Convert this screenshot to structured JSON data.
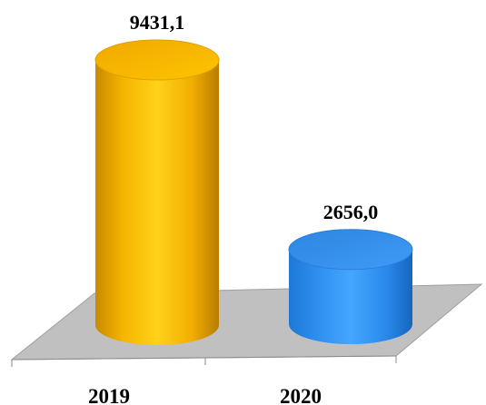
{
  "chart_data": {
    "type": "bar",
    "style": "3d-cylinder",
    "categories": [
      "2019",
      "2020"
    ],
    "values": [
      9431.1,
      2656.0
    ],
    "data_labels": [
      "9431,1",
      "2656,0"
    ],
    "colors": [
      "#FFC000",
      "#3399FF"
    ],
    "title": "",
    "xlabel": "",
    "ylabel": "",
    "ylim": [
      0,
      9431.1
    ],
    "grid": false,
    "legend": "none"
  }
}
